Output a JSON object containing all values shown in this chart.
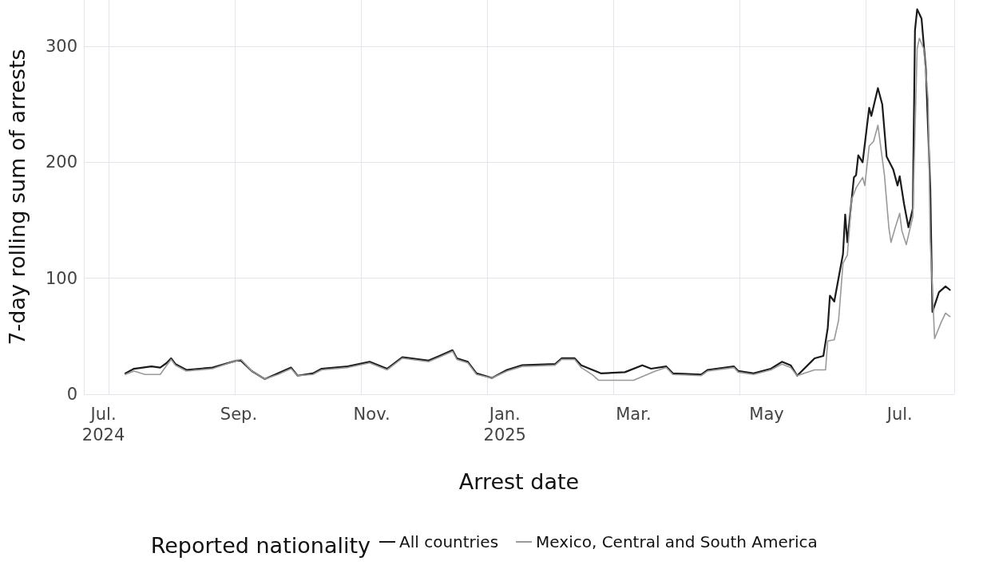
{
  "chart_data": {
    "type": "line",
    "xlabel": "Arrest date",
    "ylabel": "7-day rolling sum of arrests",
    "legend_title": "Reported nationality",
    "legend": "bottom",
    "grid": true,
    "marker": "none",
    "line_style": "solid",
    "xlim": [
      "2024-06-22",
      "2025-07-26"
    ],
    "ylim": [
      0,
      340
    ],
    "yticks": [
      0,
      100,
      200,
      300
    ],
    "xticks": [
      {
        "value": "2024-07-01",
        "label": "Jul.\n2024"
      },
      {
        "value": "2024-09-01",
        "label": "Sep."
      },
      {
        "value": "2024-11-01",
        "label": "Nov."
      },
      {
        "value": "2025-01-01",
        "label": "Jan.\n2025"
      },
      {
        "value": "2025-03-01",
        "label": "Mar."
      },
      {
        "value": "2025-05-01",
        "label": "May"
      },
      {
        "value": "2025-07-01",
        "label": "Jul."
      }
    ],
    "series": [
      {
        "name": "All countries",
        "color": "#1a1a1a",
        "x": [
          "2024-07-11",
          "2024-07-15",
          "2024-07-23",
          "2024-07-27",
          "2024-07-30",
          "2024-08-01",
          "2024-08-03",
          "2024-08-08",
          "2024-08-20",
          "2024-08-31",
          "2024-09-02",
          "2024-09-07",
          "2024-09-13",
          "2024-09-19",
          "2024-09-25",
          "2024-09-28",
          "2024-10-05",
          "2024-10-09",
          "2024-10-21",
          "2024-10-31",
          "2024-11-08",
          "2024-11-15",
          "2024-11-27",
          "2024-12-02",
          "2024-12-08",
          "2024-12-10",
          "2024-12-15",
          "2024-12-19",
          "2024-12-26",
          "2025-01-02",
          "2025-01-09",
          "2025-01-24",
          "2025-01-27",
          "2025-02-02",
          "2025-02-05",
          "2025-02-14",
          "2025-02-25",
          "2025-03-05",
          "2025-03-09",
          "2025-03-16",
          "2025-03-19",
          "2025-04-01",
          "2025-04-04",
          "2025-04-16",
          "2025-04-18",
          "2025-04-25",
          "2025-05-03",
          "2025-05-08",
          "2025-05-12",
          "2025-05-15",
          "2025-05-23",
          "2025-05-27",
          "2025-05-29",
          "2025-05-30",
          "2025-06-01",
          "2025-06-05",
          "2025-06-06",
          "2025-06-07",
          "2025-06-10",
          "2025-06-11",
          "2025-06-12",
          "2025-06-14",
          "2025-06-17",
          "2025-06-18",
          "2025-06-21",
          "2025-06-23",
          "2025-06-25",
          "2025-06-28",
          "2025-06-30",
          "2025-07-01",
          "2025-07-03",
          "2025-07-05",
          "2025-07-07",
          "2025-07-08",
          "2025-07-09",
          "2025-07-11",
          "2025-07-13",
          "2025-07-15",
          "2025-07-16",
          "2025-07-19",
          "2025-07-22",
          "2025-07-24"
        ],
        "values": [
          18,
          22,
          24,
          23,
          27,
          31,
          26,
          21,
          23,
          29,
          29,
          20,
          13,
          18,
          23,
          16,
          18,
          22,
          24,
          28,
          22,
          32,
          29,
          33,
          38,
          31,
          28,
          18,
          14,
          21,
          25,
          26,
          31,
          31,
          25,
          18,
          19,
          25,
          22,
          24,
          18,
          17,
          21,
          24,
          20,
          18,
          22,
          28,
          25,
          16,
          31,
          33,
          57,
          85,
          80,
          121,
          155,
          131,
          187,
          189,
          206,
          200,
          247,
          240,
          264,
          250,
          205,
          194,
          180,
          188,
          164,
          144,
          160,
          314,
          332,
          324,
          280,
          178,
          71,
          88,
          93,
          90
        ]
      },
      {
        "name": "Mexico, Central and South America",
        "color": "#999999",
        "x": [
          "2024-07-11",
          "2024-07-15",
          "2024-07-20",
          "2024-07-27",
          "2024-07-30",
          "2024-08-01",
          "2024-08-03",
          "2024-08-08",
          "2024-08-20",
          "2024-08-31",
          "2024-09-02",
          "2024-09-07",
          "2024-09-13",
          "2024-09-19",
          "2024-09-25",
          "2024-09-28",
          "2024-10-05",
          "2024-10-09",
          "2024-10-21",
          "2024-10-31",
          "2024-11-08",
          "2024-11-15",
          "2024-11-27",
          "2024-12-02",
          "2024-12-08",
          "2024-12-10",
          "2024-12-15",
          "2024-12-19",
          "2024-12-26",
          "2025-01-02",
          "2025-01-09",
          "2025-01-24",
          "2025-01-27",
          "2025-02-02",
          "2025-02-05",
          "2025-02-10",
          "2025-02-13",
          "2025-03-01",
          "2025-03-11",
          "2025-03-16",
          "2025-03-19",
          "2025-04-01",
          "2025-04-04",
          "2025-04-16",
          "2025-04-18",
          "2025-04-25",
          "2025-05-03",
          "2025-05-08",
          "2025-05-12",
          "2025-05-15",
          "2025-05-23",
          "2025-05-28",
          "2025-05-29",
          "2025-06-01",
          "2025-06-03",
          "2025-06-05",
          "2025-06-07",
          "2025-06-09",
          "2025-06-11",
          "2025-06-14",
          "2025-06-15",
          "2025-06-17",
          "2025-06-19",
          "2025-06-21",
          "2025-06-24",
          "2025-06-26",
          "2025-06-27",
          "2025-06-29",
          "2025-07-01",
          "2025-07-02",
          "2025-07-04",
          "2025-07-07",
          "2025-07-09",
          "2025-07-10",
          "2025-07-12",
          "2025-07-14",
          "2025-07-15",
          "2025-07-17",
          "2025-07-20",
          "2025-07-22",
          "2025-07-24"
        ],
        "values": [
          17,
          20,
          17,
          17,
          25,
          30,
          25,
          20,
          22,
          29,
          30,
          20,
          13,
          17,
          22,
          16,
          17,
          21,
          23,
          27,
          21,
          31,
          28,
          32,
          37,
          30,
          27,
          17,
          14,
          20,
          24,
          25,
          30,
          30,
          23,
          17,
          12,
          12,
          20,
          23,
          17,
          16,
          20,
          23,
          19,
          17,
          21,
          26,
          23,
          16,
          21,
          21,
          46,
          47,
          64,
          113,
          120,
          168,
          178,
          187,
          180,
          214,
          218,
          232,
          189,
          144,
          131,
          144,
          156,
          141,
          129,
          153,
          298,
          307,
          298,
          255,
          132,
          48,
          62,
          70,
          67
        ]
      }
    ]
  }
}
